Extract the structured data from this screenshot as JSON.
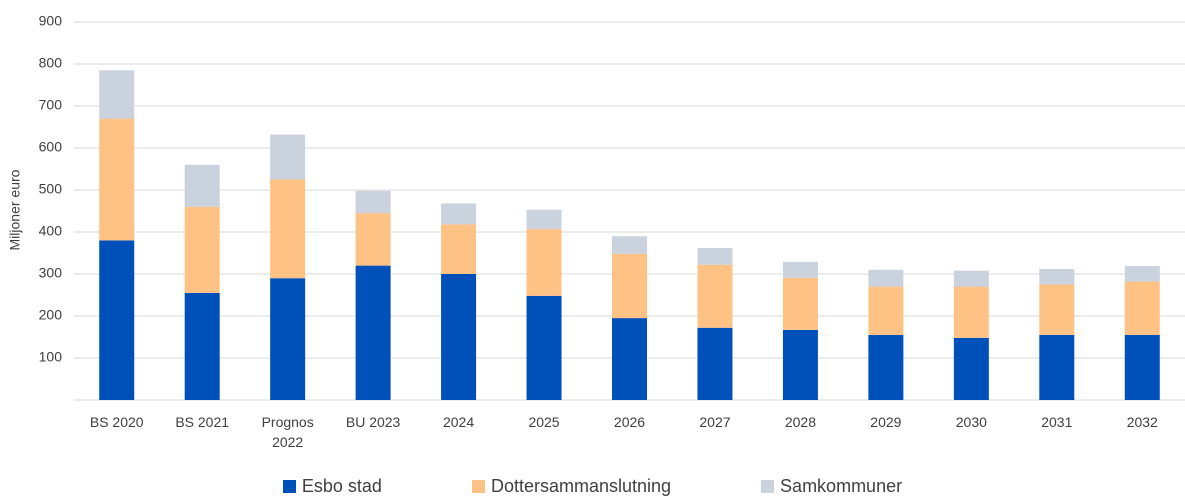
{
  "chart_data": {
    "type": "stacked_bar",
    "y_label": "Miljoner euro",
    "categories": [
      "BS 2020",
      "BS 2021",
      "Prognos 2022",
      "BU 2023",
      "2024",
      "2025",
      "2026",
      "2027",
      "2028",
      "2029",
      "2030",
      "2031",
      "2032"
    ],
    "series": [
      {
        "name": "Esbo stad",
        "color": "#0050b9",
        "values": [
          380,
          255,
          290,
          320,
          300,
          248,
          195,
          172,
          167,
          155,
          148,
          155,
          155
        ]
      },
      {
        "name": "Dottersammanslutning",
        "color": "#ffc285",
        "values": [
          290,
          205,
          235,
          125,
          118,
          159,
          153,
          150,
          124,
          115,
          122,
          120,
          127
        ]
      },
      {
        "name": "Samkommuner",
        "color": "#cad3dd",
        "values": [
          115,
          100,
          107,
          53,
          50,
          46,
          42,
          40,
          38,
          40,
          38,
          37,
          37
        ]
      }
    ],
    "ylim": [
      0,
      900
    ],
    "yticks": [
      100,
      200,
      300,
      400,
      500,
      600,
      700,
      800,
      900
    ],
    "grid": true,
    "legend": "bottom"
  }
}
